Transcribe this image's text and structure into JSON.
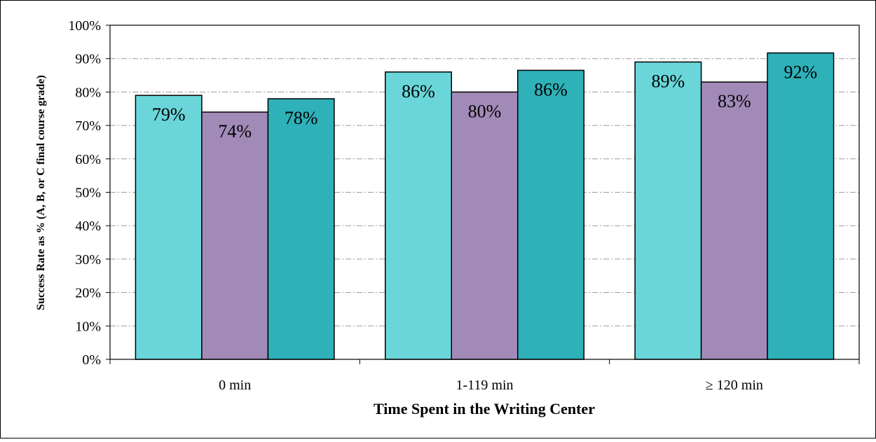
{
  "chart_data": {
    "type": "bar",
    "title": "",
    "xlabel": "Time Spent in the Writing Center",
    "ylabel": "Success Rate as % (A, B, or C final course grade)",
    "categories": [
      "0 min",
      "1-119 min",
      "≥ 120 min"
    ],
    "series": [
      {
        "values": [
          79,
          86,
          89
        ],
        "labels": [
          "79%",
          "86%",
          "89%"
        ],
        "color": "#6ad6d9"
      },
      {
        "values": [
          74,
          80,
          83
        ],
        "labels": [
          "74%",
          "80%",
          "83%"
        ],
        "color": "#a28ab8"
      },
      {
        "values": [
          78,
          86.5,
          91.7
        ],
        "labels": [
          "78%",
          "86%",
          "92%"
        ],
        "color": "#2eb1b8"
      }
    ],
    "ylim": [
      0,
      100
    ],
    "yticks": [
      0,
      10,
      20,
      30,
      40,
      50,
      60,
      70,
      80,
      90,
      100
    ],
    "ytick_labels": [
      "0%",
      "10%",
      "20%",
      "30%",
      "40%",
      "50%",
      "60%",
      "70%",
      "80%",
      "90%",
      "100%"
    ],
    "grid": "horizontal dash-dot",
    "legend": "none"
  }
}
